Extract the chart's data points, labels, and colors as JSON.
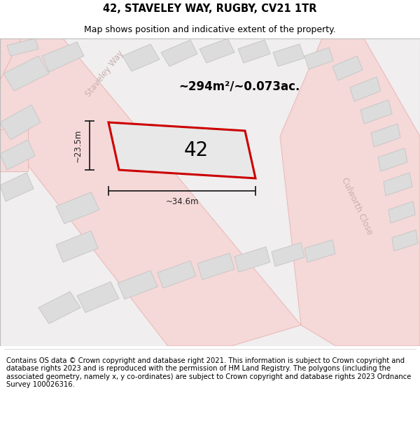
{
  "title": "42, STAVELEY WAY, RUGBY, CV21 1TR",
  "subtitle": "Map shows position and indicative extent of the property.",
  "area_label": "~294m²/~0.073ac.",
  "plot_number": "42",
  "width_label": "~34.6m",
  "height_label": "~23.5m",
  "map_bg_color": "#f0eeee",
  "road_fill_color": "#f5d8d8",
  "road_edge_color": "#e8b0b0",
  "building_fill_color": "#dcdcdc",
  "building_edge_color": "#c8c8c8",
  "plot_fill_color": "#e8e8e8",
  "plot_edge_color": "#cc0000",
  "road_label_color": "#c8b0b0",
  "dim_line_color": "#222222",
  "footer_text": "Contains OS data © Crown copyright and database right 2021. This information is subject to Crown copyright and database rights 2023 and is reproduced with the permission of HM Land Registry. The polygons (including the associated geometry, namely x, y co-ordinates) are subject to Crown copyright and database rights 2023 Ordnance Survey 100026316.",
  "title_fontsize": 10.5,
  "subtitle_fontsize": 9,
  "footer_fontsize": 7.2,
  "figsize": [
    6.0,
    6.25
  ],
  "dpi": 100
}
